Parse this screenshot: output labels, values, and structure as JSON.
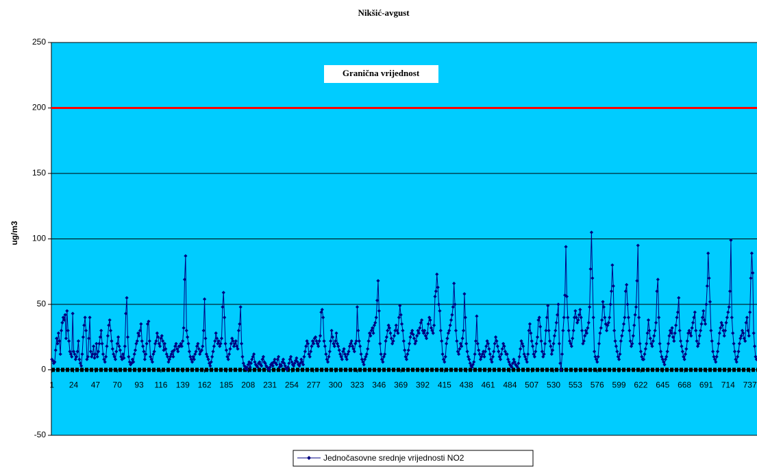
{
  "chart_data": {
    "type": "line",
    "title": "Nikšić-avgust",
    "y_label": "ug/m3",
    "threshold": {
      "value": 200,
      "label": "Granična vrijednost",
      "color": "#ff0000"
    },
    "xlim": [
      0.5,
      744.5
    ],
    "xticks": [
      1,
      24,
      47,
      70,
      93,
      116,
      139,
      162,
      185,
      208,
      231,
      254,
      277,
      300,
      323,
      346,
      369,
      392,
      415,
      438,
      461,
      484,
      507,
      530,
      553,
      576,
      599,
      622,
      645,
      668,
      691,
      714,
      737
    ],
    "ylim": [
      -50,
      250
    ],
    "yticks": [
      -50,
      0,
      50,
      100,
      150,
      200,
      250
    ],
    "grid": true,
    "background": "#00ccff",
    "series": [
      {
        "name": "Jednočasovne srednje vrijednosti NO2",
        "color": "#000080",
        "values": [
          8,
          7,
          5,
          6,
          15,
          24,
          20,
          28,
          22,
          12,
          30,
          36,
          40,
          38,
          42,
          24,
          45,
          30,
          22,
          14,
          12,
          10,
          43,
          14,
          12,
          8,
          10,
          14,
          22,
          8,
          5,
          3,
          12,
          25,
          34,
          40,
          30,
          8,
          10,
          24,
          40,
          14,
          10,
          12,
          18,
          9,
          12,
          20,
          10,
          14,
          20,
          25,
          30,
          20,
          12,
          8,
          6,
          10,
          18,
          26,
          34,
          38,
          30,
          22,
          16,
          12,
          10,
          8,
          14,
          20,
          25,
          18,
          15,
          10,
          8,
          12,
          9,
          18,
          43,
          55,
          25,
          10,
          6,
          4,
          5,
          8,
          6,
          12,
          15,
          20,
          22,
          28,
          26,
          30,
          35,
          22,
          18,
          14,
          8,
          12,
          20,
          35,
          37,
          22,
          10,
          8,
          6,
          12,
          14,
          20,
          22,
          28,
          25,
          20,
          18,
          24,
          26,
          22,
          15,
          20,
          16,
          12,
          10,
          6,
          8,
          10,
          12,
          14,
          10,
          15,
          18,
          20,
          16,
          14,
          18,
          18,
          20,
          18,
          22,
          32,
          69,
          87,
          30,
          25,
          20,
          14,
          10,
          8,
          6,
          10,
          8,
          12,
          14,
          18,
          20,
          16,
          12,
          14,
          15,
          18,
          30,
          54,
          24,
          12,
          10,
          8,
          5,
          3,
          6,
          10,
          14,
          18,
          22,
          28,
          24,
          20,
          22,
          18,
          20,
          24,
          48,
          59,
          40,
          20,
          15,
          10,
          8,
          12,
          16,
          20,
          24,
          22,
          18,
          20,
          22,
          18,
          16,
          30,
          35,
          48,
          20,
          10,
          5,
          3,
          1,
          2,
          0,
          4,
          6,
          2,
          5,
          8,
          10,
          12,
          6,
          4,
          3,
          2,
          5,
          6,
          4,
          3,
          8,
          10,
          6,
          5,
          3,
          2,
          1,
          0,
          2,
          4,
          5,
          3,
          6,
          8,
          5,
          4,
          8,
          10,
          2,
          4,
          3,
          6,
          8,
          5,
          3,
          1,
          0,
          2,
          5,
          8,
          10,
          6,
          4,
          3,
          5,
          7,
          9,
          6,
          4,
          3,
          5,
          8,
          6,
          4,
          10,
          14,
          18,
          22,
          20,
          12,
          10,
          14,
          18,
          22,
          20,
          24,
          25,
          22,
          20,
          18,
          22,
          26,
          44,
          46,
          40,
          22,
          18,
          12,
          8,
          6,
          10,
          14,
          22,
          30,
          25,
          20,
          18,
          22,
          28,
          20,
          18,
          15,
          12,
          10,
          8,
          14,
          16,
          12,
          10,
          8,
          12,
          14,
          18,
          20,
          22,
          18,
          16,
          14,
          20,
          22,
          48,
          30,
          22,
          18,
          12,
          8,
          6,
          4,
          8,
          10,
          12,
          16,
          22,
          28,
          26,
          30,
          32,
          28,
          34,
          36,
          40,
          53,
          68,
          45,
          20,
          12,
          8,
          6,
          10,
          12,
          22,
          25,
          30,
          34,
          32,
          28,
          24,
          20,
          22,
          26,
          30,
          34,
          30,
          28,
          40,
          49,
          42,
          35,
          30,
          22,
          15,
          10,
          8,
          12,
          15,
          20,
          25,
          28,
          30,
          27,
          24,
          20,
          22,
          26,
          30,
          28,
          32,
          36,
          38,
          30,
          28,
          30,
          26,
          24,
          28,
          35,
          40,
          38,
          32,
          30,
          28,
          34,
          56,
          60,
          73,
          63,
          50,
          45,
          30,
          22,
          12,
          8,
          6,
          10,
          20,
          24,
          28,
          30,
          34,
          38,
          42,
          48,
          66,
          50,
          30,
          22,
          14,
          12,
          16,
          20,
          18,
          24,
          30,
          58,
          40,
          20,
          14,
          10,
          8,
          5,
          3,
          2,
          4,
          6,
          12,
          22,
          41,
          20,
          15,
          12,
          8,
          10,
          12,
          14,
          10,
          14,
          18,
          22,
          20,
          16,
          12,
          8,
          6,
          10,
          14,
          20,
          25,
          22,
          18,
          14,
          10,
          8,
          12,
          16,
          20,
          18,
          14,
          12,
          12,
          8,
          6,
          4,
          3,
          2,
          5,
          8,
          6,
          4,
          3,
          2,
          5,
          10,
          16,
          22,
          20,
          18,
          12,
          10,
          8,
          6,
          12,
          30,
          35,
          28,
          22,
          18,
          12,
          10,
          14,
          20,
          25,
          38,
          40,
          33,
          22,
          14,
          10,
          12,
          20,
          30,
          40,
          49,
          30,
          22,
          18,
          12,
          15,
          20,
          26,
          30,
          36,
          42,
          50,
          20,
          5,
          0,
          12,
          30,
          40,
          57,
          94,
          56,
          40,
          30,
          22,
          20,
          18,
          24,
          30,
          40,
          45,
          40,
          36,
          38,
          42,
          46,
          40,
          30,
          20,
          22,
          26,
          30,
          28,
          32,
          36,
          48,
          77,
          105,
          70,
          40,
          14,
          10,
          8,
          6,
          10,
          20,
          28,
          32,
          38,
          52,
          48,
          40,
          35,
          30,
          34,
          36,
          40,
          50,
          60,
          80,
          64,
          30,
          22,
          18,
          14,
          10,
          8,
          12,
          22,
          26,
          30,
          35,
          40,
          60,
          65,
          50,
          40,
          30,
          22,
          18,
          20,
          26,
          34,
          42,
          48,
          68,
          95,
          40,
          20,
          14,
          10,
          8,
          8,
          12,
          16,
          20,
          28,
          38,
          30,
          24,
          20,
          18,
          22,
          26,
          30,
          36,
          60,
          69,
          40,
          20,
          14,
          10,
          8,
          6,
          4,
          8,
          10,
          14,
          20,
          26,
          30,
          28,
          32,
          25,
          22,
          28,
          34,
          40,
          44,
          55,
          30,
          22,
          18,
          14,
          10,
          8,
          12,
          16,
          22,
          28,
          30,
          28,
          26,
          32,
          36,
          40,
          44,
          30,
          22,
          18,
          20,
          26,
          30,
          35,
          40,
          45,
          38,
          35,
          50,
          64,
          89,
          70,
          52,
          30,
          22,
          14,
          10,
          8,
          6,
          10,
          14,
          20,
          28,
          32,
          36,
          34,
          30,
          26,
          30,
          36,
          40,
          44,
          48,
          60,
          99,
          40,
          28,
          20,
          14,
          8,
          6,
          10,
          14,
          20,
          24,
          26,
          30,
          28,
          24,
          22,
          36,
          40,
          30,
          26,
          44,
          70,
          89,
          74,
          28,
          18,
          10,
          8
        ]
      }
    ]
  }
}
